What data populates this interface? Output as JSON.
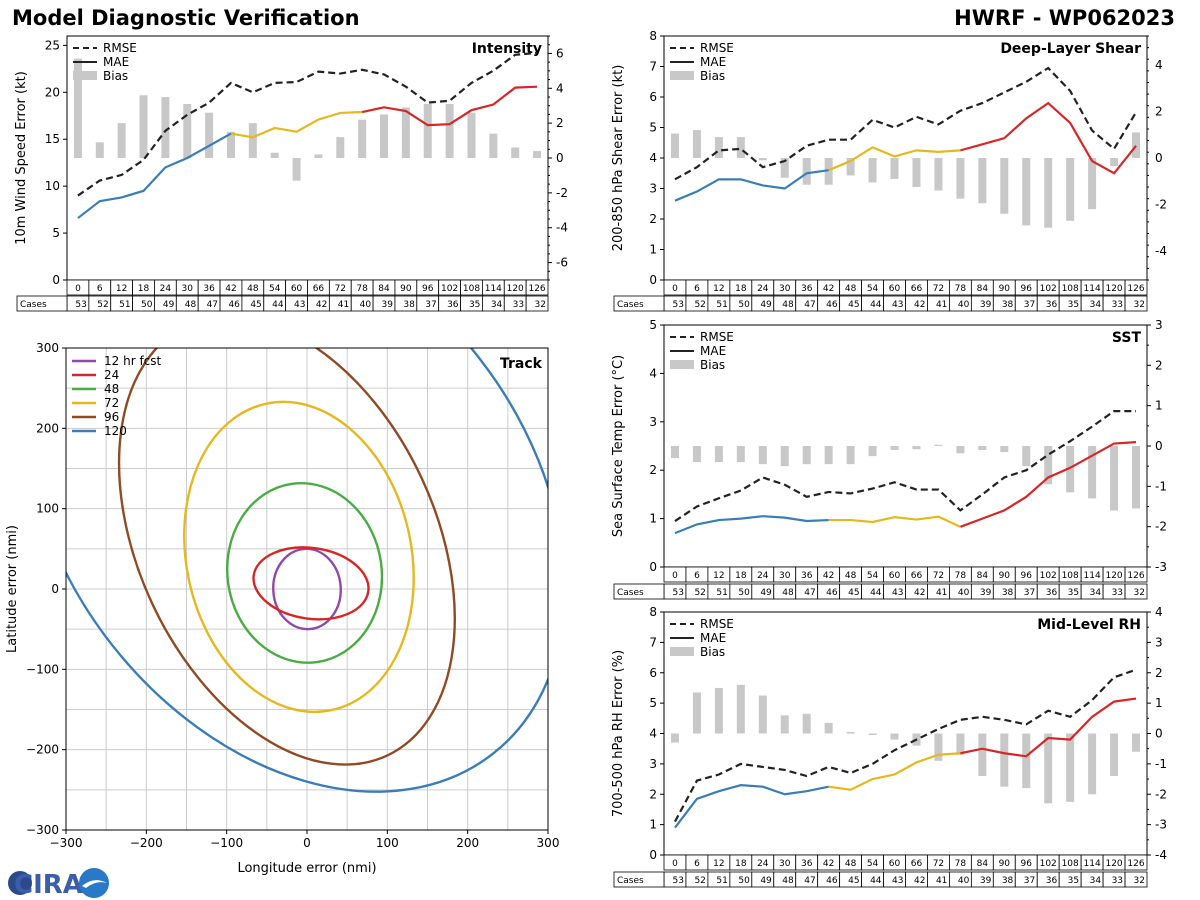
{
  "header": {
    "left_title": "Model Diagnostic Verification",
    "right_title": "HWRF - WP062023"
  },
  "logo": {
    "text": "CIRA"
  },
  "colors": {
    "rmse": "#222222",
    "bias": "#c8c8c8",
    "seg_blue": "#3a7db7",
    "seg_gold": "#e6b820",
    "seg_red": "#d62728",
    "grid": "#cccccc"
  },
  "chart_data": [
    {
      "id": "intensity",
      "type": "line",
      "title": "Intensity",
      "ylabel": "10m Wind Speed Error (kt)",
      "ylim": [
        0,
        26
      ],
      "yticks": [
        0,
        5,
        10,
        15,
        20,
        25
      ],
      "y2lim": [
        -7,
        7
      ],
      "y2ticks": [
        -6,
        -4,
        -2,
        0,
        2,
        4,
        6
      ],
      "x": [
        0,
        6,
        12,
        18,
        24,
        30,
        36,
        42,
        48,
        54,
        60,
        66,
        72,
        78,
        84,
        90,
        96,
        102,
        108,
        114,
        120,
        126
      ],
      "cases": [
        53,
        52,
        51,
        50,
        49,
        48,
        47,
        46,
        45,
        44,
        43,
        42,
        41,
        40,
        39,
        38,
        37,
        36,
        35,
        34,
        33,
        32
      ],
      "cases_label": "Cases",
      "legend": [
        "RMSE",
        "MAE",
        "Bias"
      ],
      "rmse": [
        9.0,
        10.6,
        11.2,
        12.8,
        15.9,
        17.6,
        18.9,
        21.0,
        20.0,
        21.0,
        21.1,
        22.2,
        22.0,
        22.4,
        21.9,
        20.6,
        18.9,
        19.1,
        21.0,
        22.3,
        24.0,
        24.2
      ],
      "mae": [
        6.6,
        8.4,
        8.8,
        9.5,
        12.0,
        13.0,
        14.3,
        15.6,
        15.2,
        16.2,
        15.8,
        17.1,
        17.8,
        17.9,
        18.4,
        18.0,
        16.5,
        16.6,
        18.1,
        18.7,
        20.5,
        20.6
      ],
      "bias": [
        5.7,
        0.9,
        2.0,
        3.6,
        3.5,
        3.1,
        2.6,
        1.5,
        2.0,
        0.3,
        -1.3,
        0.2,
        1.2,
        2.2,
        2.5,
        2.9,
        3.1,
        3.1,
        2.6,
        1.4,
        0.6,
        0.4
      ]
    },
    {
      "id": "shear",
      "type": "line",
      "title": "Deep-Layer Shear",
      "ylabel": "200-850 hPa Shear Error (kt)",
      "ylim": [
        0,
        8
      ],
      "yticks": [
        0,
        1,
        2,
        3,
        4,
        5,
        6,
        7,
        8
      ],
      "y2lim": [
        -5.25,
        5.25
      ],
      "y2ticks": [
        -4,
        -2,
        0,
        2,
        4
      ],
      "x": [
        0,
        6,
        12,
        18,
        24,
        30,
        36,
        42,
        48,
        54,
        60,
        66,
        72,
        78,
        84,
        90,
        96,
        102,
        108,
        114,
        120,
        126
      ],
      "cases": [
        53,
        52,
        51,
        50,
        49,
        48,
        47,
        46,
        45,
        44,
        43,
        42,
        41,
        40,
        39,
        38,
        37,
        36,
        35,
        34,
        33,
        32
      ],
      "cases_label": "Cases",
      "legend": [
        "RMSE",
        "MAE",
        "Bias"
      ],
      "rmse": [
        3.3,
        3.7,
        4.25,
        4.3,
        3.7,
        3.9,
        4.4,
        4.6,
        4.6,
        5.25,
        5.0,
        5.35,
        5.1,
        5.55,
        5.8,
        6.15,
        6.5,
        6.95,
        6.2,
        4.9,
        4.3,
        5.5
      ],
      "mae": [
        2.6,
        2.9,
        3.3,
        3.3,
        3.1,
        3.0,
        3.5,
        3.6,
        3.9,
        4.35,
        4.05,
        4.25,
        4.2,
        4.25,
        4.45,
        4.65,
        5.3,
        5.8,
        5.15,
        3.9,
        3.5,
        4.4
      ],
      "bias": [
        1.05,
        1.2,
        0.9,
        0.9,
        -0.1,
        -0.85,
        -1.15,
        -1.15,
        -0.75,
        -1.05,
        -0.9,
        -1.25,
        -1.4,
        -1.75,
        -1.95,
        -2.4,
        -2.9,
        -3.0,
        -2.7,
        -2.2,
        -0.35,
        1.1
      ]
    },
    {
      "id": "track",
      "type": "line",
      "title": "Track",
      "xlabel": "Longitude error (nmi)",
      "ylabel": "Latitude error (nmi)",
      "xlim": [
        -300,
        300
      ],
      "ylim": [
        -300,
        300
      ],
      "xticks": [
        -300,
        -200,
        -100,
        0,
        100,
        200,
        300
      ],
      "yticks": [
        -300,
        -200,
        -100,
        0,
        100,
        200,
        300
      ],
      "legend_placement": "top-left",
      "ellipses": [
        {
          "name": "12 hr fcst",
          "color": "#8e4aa8",
          "cx": 0,
          "cy": 0,
          "rx": 42,
          "ry": 50,
          "angle": -3
        },
        {
          "name": "24",
          "color": "#d62728",
          "cx": 5,
          "cy": 7,
          "rx": 72,
          "ry": 44,
          "angle": 8
        },
        {
          "name": "48",
          "color": "#4bab46",
          "cx": -3,
          "cy": 20,
          "rx": 96,
          "ry": 112,
          "angle": -8
        },
        {
          "name": "72",
          "color": "#e6b820",
          "cx": -10,
          "cy": 40,
          "rx": 140,
          "ry": 195,
          "angle": -12
        },
        {
          "name": "96",
          "color": "#8f4a26",
          "cx": -25,
          "cy": 60,
          "rx": 185,
          "ry": 295,
          "angle": -25
        },
        {
          "name": "120",
          "color": "#3a7db7",
          "cx": -15,
          "cy": 110,
          "rx": 290,
          "ry": 400,
          "angle": -38
        }
      ]
    },
    {
      "id": "sst",
      "type": "line",
      "title": "SST",
      "ylabel": "Sea Surface Temp Error (°C)",
      "ylim": [
        0,
        5
      ],
      "yticks": [
        0,
        1,
        2,
        3,
        4,
        5
      ],
      "y2lim": [
        -3,
        3
      ],
      "y2ticks": [
        -3,
        -2,
        -1,
        0,
        1,
        2,
        3
      ],
      "x": [
        0,
        6,
        12,
        18,
        24,
        30,
        36,
        42,
        48,
        54,
        60,
        66,
        72,
        78,
        84,
        90,
        96,
        102,
        108,
        114,
        120,
        126
      ],
      "cases": [
        53,
        52,
        51,
        50,
        49,
        48,
        47,
        46,
        45,
        44,
        43,
        42,
        41,
        40,
        39,
        38,
        37,
        36,
        35,
        34,
        33,
        32
      ],
      "cases_label": "Cases",
      "legend": [
        "RMSE",
        "MAE",
        "Bias"
      ],
      "rmse": [
        0.95,
        1.25,
        1.42,
        1.58,
        1.85,
        1.7,
        1.45,
        1.55,
        1.52,
        1.62,
        1.75,
        1.6,
        1.6,
        1.17,
        1.5,
        1.85,
        2.0,
        2.32,
        2.6,
        2.9,
        3.22,
        3.22
      ],
      "mae": [
        0.7,
        0.88,
        0.97,
        1.0,
        1.05,
        1.02,
        0.95,
        0.97,
        0.97,
        0.93,
        1.03,
        0.98,
        1.04,
        0.83,
        1.0,
        1.17,
        1.45,
        1.85,
        2.05,
        2.3,
        2.55,
        2.58
      ],
      "bias": [
        -0.3,
        -0.4,
        -0.4,
        -0.4,
        -0.45,
        -0.5,
        -0.45,
        -0.45,
        -0.45,
        -0.25,
        -0.1,
        -0.08,
        0.03,
        -0.18,
        -0.1,
        -0.15,
        -0.5,
        -0.95,
        -1.15,
        -1.3,
        -1.6,
        -1.55
      ]
    },
    {
      "id": "rh",
      "type": "line",
      "title": "Mid-Level RH",
      "ylabel": "700-500 hPa RH Error (%)",
      "ylim": [
        0,
        8
      ],
      "yticks": [
        0,
        1,
        2,
        3,
        4,
        5,
        6,
        7,
        8
      ],
      "y2lim": [
        -4,
        4
      ],
      "y2ticks": [
        -4,
        -3,
        -2,
        -1,
        0,
        1,
        2,
        3,
        4
      ],
      "x": [
        0,
        6,
        12,
        18,
        24,
        30,
        36,
        42,
        48,
        54,
        60,
        66,
        72,
        78,
        84,
        90,
        96,
        102,
        108,
        114,
        120,
        126
      ],
      "cases": [
        53,
        52,
        51,
        50,
        49,
        48,
        47,
        46,
        45,
        44,
        43,
        42,
        41,
        40,
        39,
        38,
        37,
        36,
        35,
        34,
        33,
        32
      ],
      "cases_label": "Cases",
      "legend": [
        "RMSE",
        "MAE",
        "Bias"
      ],
      "rmse": [
        1.1,
        2.45,
        2.65,
        3.0,
        2.9,
        2.8,
        2.6,
        2.9,
        2.7,
        3.0,
        3.45,
        3.8,
        4.15,
        4.45,
        4.55,
        4.45,
        4.3,
        4.75,
        4.55,
        5.1,
        5.85,
        6.1
      ],
      "mae": [
        0.9,
        1.85,
        2.1,
        2.3,
        2.25,
        2.0,
        2.1,
        2.25,
        2.15,
        2.5,
        2.65,
        3.05,
        3.3,
        3.35,
        3.5,
        3.35,
        3.25,
        3.85,
        3.8,
        4.55,
        5.05,
        5.15
      ],
      "bias": [
        -0.3,
        1.35,
        1.5,
        1.6,
        1.25,
        0.6,
        0.65,
        0.35,
        0.05,
        -0.05,
        -0.2,
        -0.4,
        -0.9,
        -0.7,
        -1.4,
        -1.75,
        -1.8,
        -2.3,
        -2.25,
        -2.0,
        -1.4,
        -0.6
      ]
    }
  ]
}
